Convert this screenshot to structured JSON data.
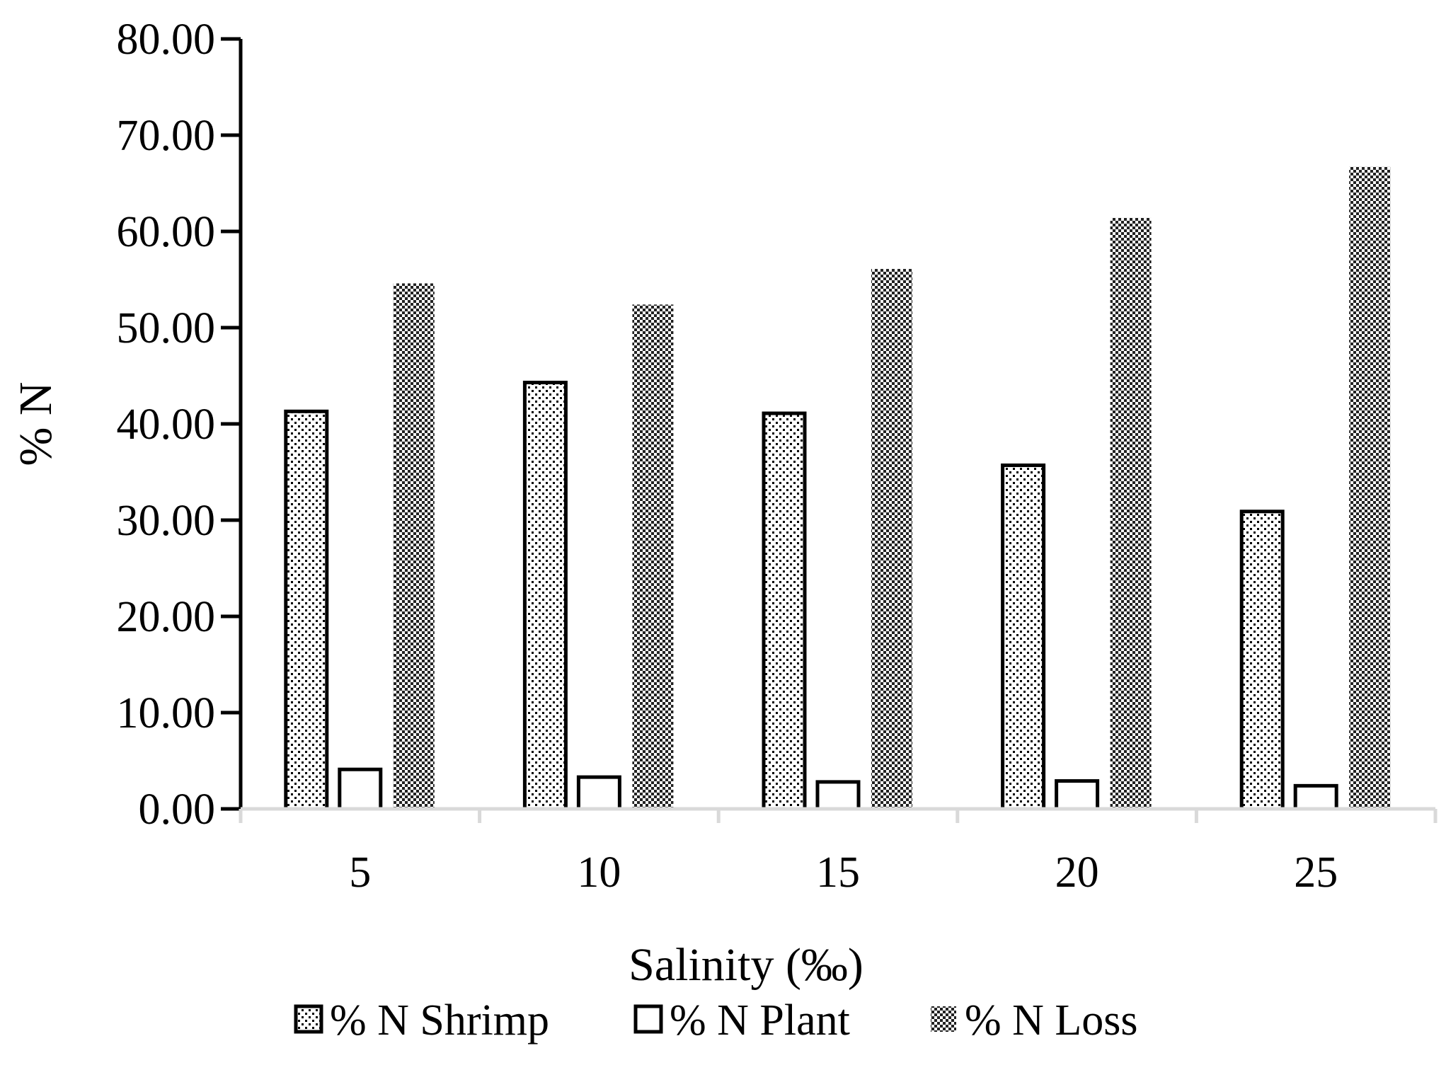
{
  "chart_data": {
    "type": "bar",
    "title": "",
    "xlabel": "Salinity (‰)",
    "ylabel": "% N",
    "ylim": [
      0,
      80
    ],
    "yticks": [
      "0.00",
      "10.00",
      "20.00",
      "30.00",
      "40.00",
      "50.00",
      "60.00",
      "70.00",
      "80.00"
    ],
    "categories": [
      "5",
      "10",
      "15",
      "20",
      "25"
    ],
    "series": [
      {
        "name": "% N Shrimp",
        "pattern": "dots",
        "values": [
          41.3,
          44.3,
          41.1,
          35.7,
          30.9
        ]
      },
      {
        "name": "% N Plant",
        "pattern": "blank",
        "values": [
          4.1,
          3.3,
          2.8,
          2.9,
          2.4
        ]
      },
      {
        "name": "% N Loss",
        "pattern": "checker",
        "values": [
          54.6,
          52.4,
          56.1,
          61.4,
          66.7
        ]
      }
    ],
    "grid": false,
    "legend_position": "bottom",
    "colors": {
      "ink": "#000000",
      "axis": "#d9d9d9",
      "fill": "#ffffff"
    }
  }
}
